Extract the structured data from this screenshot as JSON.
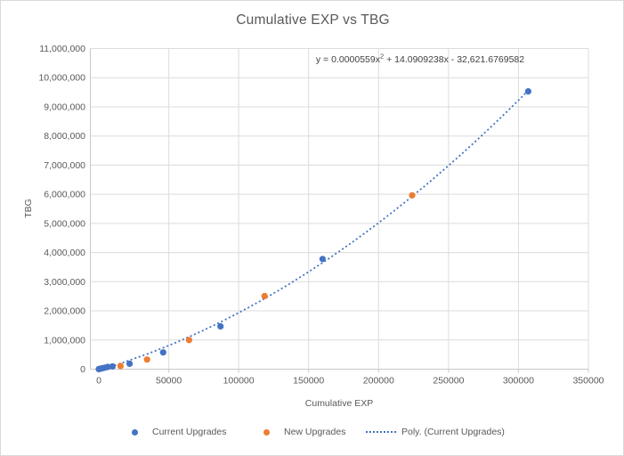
{
  "chart_data": {
    "type": "scatter",
    "title": "Cumulative EXP vs TBG",
    "xlabel": "Cumulative EXP",
    "ylabel": "TBG",
    "grid": true,
    "legend_position": "bottom",
    "x_axis": {
      "min": 0,
      "max": 350000,
      "step": 50000,
      "tick_labels": [
        "0",
        "50000",
        "100000",
        "150000",
        "200000",
        "250000",
        "300000",
        "350000"
      ]
    },
    "y_axis": {
      "min": 0,
      "max": 11000000,
      "step": 1000000,
      "tick_labels": [
        "0",
        "1,000,000",
        "2,000,000",
        "3,000,000",
        "4,000,000",
        "5,000,000",
        "6,000,000",
        "7,000,000",
        "8,000,000",
        "9,000,000",
        "10,000,000",
        "11,000,000"
      ]
    },
    "series": [
      {
        "name": "Current Upgrades",
        "color": "#4472C4",
        "marker": "circle",
        "points": [
          [
            0,
            2000
          ],
          [
            1200,
            15000
          ],
          [
            2600,
            33000
          ],
          [
            4400,
            52000
          ],
          [
            6400,
            75000
          ],
          [
            9800,
            95000
          ],
          [
            22000,
            185000
          ],
          [
            46000,
            575000
          ],
          [
            87000,
            1470000
          ],
          [
            160000,
            3780000
          ],
          [
            307000,
            9530000
          ]
        ]
      },
      {
        "name": "New Upgrades",
        "color": "#ED7D31",
        "marker": "circle",
        "points": [
          [
            15500,
            110000
          ],
          [
            34500,
            330000
          ],
          [
            64500,
            1000000
          ],
          [
            118500,
            2510000
          ],
          [
            224000,
            5965000
          ]
        ]
      }
    ],
    "trendline": {
      "name": "Poly. (Current Upgrades)",
      "series": "Current Upgrades",
      "type": "polynomial",
      "degree": 2,
      "coefficients": {
        "x2": 5.59e-05,
        "x": 14.0909238,
        "constant": -32621.6769582
      },
      "color": "#4472C4",
      "style": "dotted",
      "x_start": 2400,
      "x_end": 307000,
      "equation": {
        "prefix": "y = 0.0000559x",
        "superscript": "2",
        "suffix": " + 14.0909238x - 32,621.6769582"
      }
    },
    "colors": {
      "axis_text": "#595959",
      "title_text": "#595959",
      "equation_text": "#404040",
      "gridline": "#DCDCDC",
      "axis_line": "#C8C8C8",
      "background": "#FFFFFF",
      "border": "#D9D9D9"
    }
  }
}
